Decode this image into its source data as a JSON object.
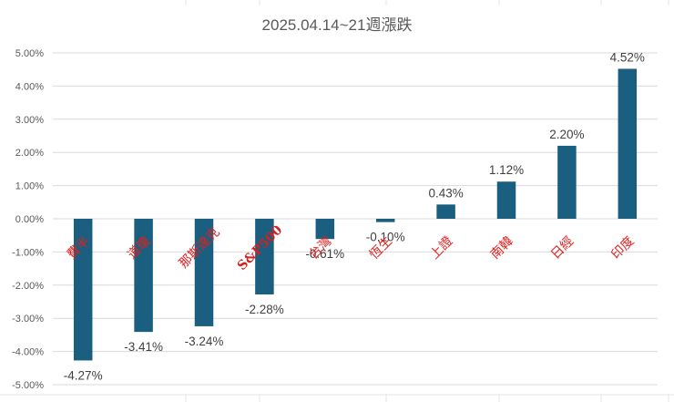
{
  "chart_data": {
    "type": "bar",
    "title": "2025.04.14~21週漲跌",
    "xlabel": "",
    "ylabel": "",
    "categories": [
      "費半",
      "道瓊",
      "那斯達克",
      "S&P500",
      "台灣",
      "恆生",
      "上證",
      "南韓",
      "日經",
      "印度"
    ],
    "values": [
      -4.27,
      -3.41,
      -3.24,
      -2.28,
      -0.61,
      -0.1,
      0.43,
      1.12,
      2.2,
      4.52
    ],
    "data_labels": [
      "-4.27%",
      "-3.41%",
      "-3.24%",
      "-2.28%",
      "-0.61%",
      "-0.10%",
      "0.43%",
      "1.12%",
      "2.20%",
      "4.52%"
    ],
    "ylim": [
      -5,
      5
    ],
    "yticks": [
      5,
      4,
      3,
      2,
      1,
      0,
      -1,
      -2,
      -3,
      -4,
      -5
    ],
    "ytick_labels": [
      "5.00%",
      "4.00%",
      "3.00%",
      "2.00%",
      "1.00%",
      "0.00%",
      "-1.00%",
      "-2.00%",
      "-3.00%",
      "-4.00%",
      "-5.00%"
    ],
    "grid": true,
    "legend": "none",
    "colors": {
      "bar": "#1a5f7f",
      "category_label": "#e02020",
      "category_label_emphasis": "#d42020",
      "grid": "#d9d9d9",
      "axis_text": "#595959"
    }
  }
}
